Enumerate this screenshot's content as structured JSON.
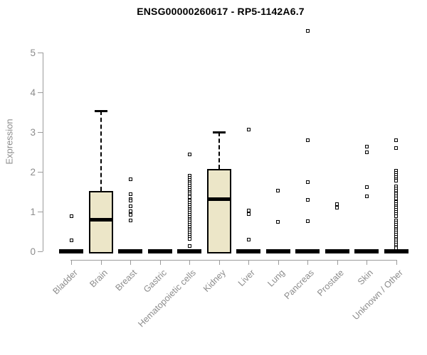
{
  "chart_data": {
    "type": "boxplot",
    "title": "ENSG00000260617 - RP5-1142A6.7",
    "ylabel": "Expression",
    "xlabel": "",
    "ylim": [
      0,
      5.6
    ],
    "yticks": [
      0,
      1,
      2,
      3,
      4,
      5
    ],
    "grid": false,
    "legend": false,
    "colors": {
      "box_fill": "#ece6c8",
      "box_border": "#000000",
      "axis": "#9b9b9b",
      "tick_text": "#8c8c8c",
      "title_text": "#000000"
    },
    "categories": [
      "Bladder",
      "Brain",
      "Breast",
      "Gastric",
      "Hematopoietic cells",
      "Kidney",
      "Liver",
      "Lung",
      "Pancreas",
      "Prostate",
      "Skin",
      "Unknown / Other"
    ],
    "boxes": [
      {
        "category": "Bladder",
        "q1": 0,
        "median": 0,
        "q3": 0,
        "whisker_low": 0,
        "whisker_high": 0,
        "outliers": [
          0.89,
          0.27
        ]
      },
      {
        "category": "Brain",
        "q1": 0,
        "median": 0.8,
        "q3": 1.52,
        "whisker_low": 0,
        "whisker_high": 3.53,
        "outliers": []
      },
      {
        "category": "Breast",
        "q1": 0,
        "median": 0,
        "q3": 0,
        "whisker_low": 0,
        "whisker_high": 0,
        "outliers": [
          1.82,
          1.43,
          1.31,
          1.27,
          1.14,
          1.01,
          0.92,
          0.77
        ]
      },
      {
        "category": "Gastric",
        "q1": 0,
        "median": 0,
        "q3": 0,
        "whisker_low": 0,
        "whisker_high": 0,
        "outliers": []
      },
      {
        "category": "Hematopoietic cells",
        "q1": 0,
        "median": 0,
        "q3": 0,
        "whisker_low": 0,
        "whisker_high": 0,
        "outliers": [
          2.43,
          1.9,
          1.85,
          1.8,
          1.75,
          1.7,
          1.65,
          1.6,
          1.55,
          1.5,
          1.45,
          1.4,
          1.36,
          1.27,
          1.22,
          1.17,
          1.12,
          1.07,
          1.02,
          0.97,
          0.92,
          0.87,
          0.82,
          0.77,
          0.72,
          0.67,
          0.62,
          0.57,
          0.52,
          0.47,
          0.42,
          0.37,
          0.32,
          0.14
        ]
      },
      {
        "category": "Kidney",
        "q1": 0,
        "median": 1.33,
        "q3": 2.08,
        "whisker_low": 0,
        "whisker_high": 3.0,
        "outliers": []
      },
      {
        "category": "Liver",
        "q1": 0,
        "median": 0,
        "q3": 0,
        "whisker_low": 0,
        "whisker_high": 0,
        "outliers": [
          3.07,
          1.02,
          0.93,
          0.3
        ]
      },
      {
        "category": "Lung",
        "q1": 0,
        "median": 0,
        "q3": 0,
        "whisker_low": 0,
        "whisker_high": 0,
        "outliers": [
          1.52,
          0.74
        ]
      },
      {
        "category": "Pancreas",
        "q1": 0,
        "median": 0,
        "q3": 0,
        "whisker_low": 0,
        "whisker_high": 0,
        "outliers": [
          5.55,
          2.79,
          1.75,
          1.3,
          0.76
        ]
      },
      {
        "category": "Prostate",
        "q1": 0,
        "median": 0,
        "q3": 0,
        "whisker_low": 0,
        "whisker_high": 0,
        "outliers": [
          1.18,
          1.1
        ]
      },
      {
        "category": "Skin",
        "q1": 0,
        "median": 0,
        "q3": 0,
        "whisker_low": 0,
        "whisker_high": 0,
        "outliers": [
          2.64,
          2.5,
          1.62,
          1.38
        ]
      },
      {
        "category": "Unknown / Other",
        "q1": 0,
        "median": 0,
        "q3": 0,
        "whisker_low": 0,
        "whisker_high": 0,
        "outliers": [
          2.8,
          2.6,
          2.02,
          1.97,
          1.92,
          1.87,
          1.82,
          1.77,
          1.63,
          1.58,
          1.53,
          1.48,
          1.43,
          1.38,
          1.33,
          1.24,
          1.19,
          1.14,
          1.09,
          1.04,
          0.99,
          0.94,
          0.89,
          0.77,
          0.72,
          0.67,
          0.62,
          0.57,
          0.52,
          0.47,
          0.42,
          0.37,
          0.32,
          0.27,
          0.22,
          0.17,
          0.12,
          0.08
        ]
      }
    ]
  }
}
